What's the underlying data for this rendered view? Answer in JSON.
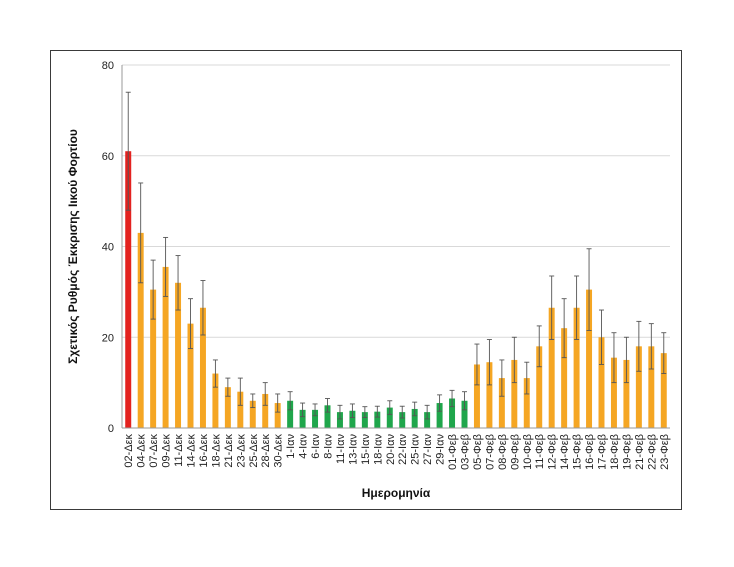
{
  "chart_data": {
    "type": "bar",
    "title": "",
    "xlabel": "Ημερομηνία",
    "ylabel": "Σχετικός Ρυθμός Έκκρισης Ιικού Φορτίου",
    "ylim": [
      0,
      80
    ],
    "yticks": [
      0,
      20,
      40,
      60,
      80
    ],
    "grid": true,
    "error_bars": true,
    "categories": [
      "02-Δεκ",
      "04-Δεκ",
      "07-Δεκ",
      "09-Δεκ",
      "11-Δεκ",
      "14-Δεκ",
      "16-Δεκ",
      "18-Δεκ",
      "21-Δεκ",
      "23-Δεκ",
      "25-Δεκ",
      "28-Δεκ",
      "30-Δεκ",
      "1-Ιαν",
      "4-Ιαν",
      "6-Ιαν",
      "8-Ιαν",
      "11-Ιαν",
      "13-Ιαν",
      "15-Ιαν",
      "18-Ιαν",
      "20-Ιαν",
      "22-Ιαν",
      "25-Ιαν",
      "27-Ιαν",
      "29-Ιαν",
      "01-Φεβ",
      "03-Φεβ",
      "05-Φεβ",
      "07-Φεβ",
      "08-Φεβ",
      "09-Φεβ",
      "10-Φεβ",
      "11-Φεβ",
      "12-Φεβ",
      "14-Φεβ",
      "15-Φεβ",
      "16-Φεβ",
      "17-Φεβ",
      "18-Φεβ",
      "19-Φεβ",
      "21-Φεβ",
      "22-Φεβ",
      "23-Φεβ"
    ],
    "values": [
      61,
      43,
      30.5,
      35.5,
      32,
      23,
      26.5,
      12,
      9,
      8,
      6,
      7.5,
      5.5,
      6,
      4,
      4,
      5,
      3.5,
      3.8,
      3.5,
      3.6,
      4.5,
      3.5,
      4.2,
      3.5,
      5.5,
      6.5,
      6,
      14,
      14.5,
      11,
      15,
      11,
      18,
      26.5,
      22,
      26.5,
      30.5,
      20,
      15.5,
      15,
      18,
      18,
      16.5
    ],
    "errors": [
      13,
      11,
      6.5,
      6.5,
      6,
      5.5,
      6,
      3,
      2,
      3,
      1.5,
      2.5,
      2,
      2,
      1.5,
      1.3,
      1.5,
      1.5,
      1.5,
      1.2,
      1.2,
      1.5,
      1.3,
      1.5,
      1.5,
      1.8,
      1.8,
      2,
      4.5,
      5,
      4,
      5,
      3.5,
      4.5,
      7,
      6.5,
      7,
      9,
      6,
      5.5,
      5,
      5.5,
      5,
      4.5
    ],
    "bar_colors": [
      "#e3221f",
      "#f5a623",
      "#f5a623",
      "#f5a623",
      "#f5a623",
      "#f5a623",
      "#f5a623",
      "#f5a623",
      "#f5a623",
      "#f5a623",
      "#f5a623",
      "#f5a623",
      "#f5a623",
      "#1fa64b",
      "#1fa64b",
      "#1fa64b",
      "#1fa64b",
      "#1fa64b",
      "#1fa64b",
      "#1fa64b",
      "#1fa64b",
      "#1fa64b",
      "#1fa64b",
      "#1fa64b",
      "#1fa64b",
      "#1fa64b",
      "#1fa64b",
      "#1fa64b",
      "#f5a623",
      "#f5a623",
      "#f5a623",
      "#f5a623",
      "#f5a623",
      "#f5a623",
      "#f5a623",
      "#f5a623",
      "#f5a623",
      "#f5a623",
      "#f5a623",
      "#f5a623",
      "#f5a623",
      "#f5a623",
      "#f5a623",
      "#f5a623"
    ]
  }
}
